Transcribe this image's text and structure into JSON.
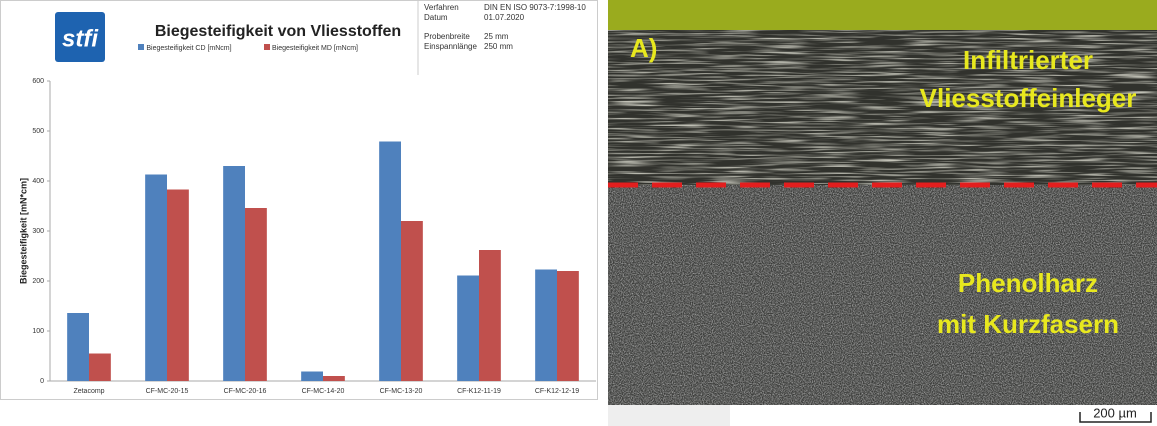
{
  "header": {
    "logo": "stfi",
    "meta": [
      [
        "Verfahren",
        "DIN EN ISO 9073-7:1998-10"
      ],
      [
        "Datum",
        "01.07.2020"
      ],
      [
        "Probenbreite",
        "25 mm"
      ],
      [
        "Einspannlänge",
        "250 mm"
      ]
    ]
  },
  "chart_data": {
    "type": "bar",
    "title": "Biegesteifigkeit von Vliesstoffen",
    "ylabel": "Biegesteifigkeit [mN*cm]",
    "categories": [
      "Zetacomp",
      "CF-MC-20-15",
      "CF-MC-20-16",
      "CF-MC-14-20",
      "CF-MC-13-20",
      "CF-K12-11-19",
      "CF-K12-12-19"
    ],
    "series": [
      {
        "name": "Biegesteifigkeit CD [mNcm]",
        "color": "#4f81bd",
        "values": [
          136,
          413,
          430,
          19,
          479,
          211,
          223
        ]
      },
      {
        "name": "Biegesteifigkeit MD [mNcm]",
        "color": "#c0504d",
        "values": [
          55,
          383,
          346,
          10,
          320,
          262,
          220
        ]
      }
    ],
    "ylim": [
      0,
      600
    ],
    "yticks": [
      0,
      100,
      200,
      300,
      400,
      500,
      600
    ],
    "grid": false
  },
  "image": {
    "panel": "A)",
    "top_label": [
      "Infiltrierter",
      "Vliesstoffeinleger"
    ],
    "bottom_label": [
      "Phenolharz",
      "mit Kurzfasern"
    ],
    "scale": "200 µm"
  }
}
